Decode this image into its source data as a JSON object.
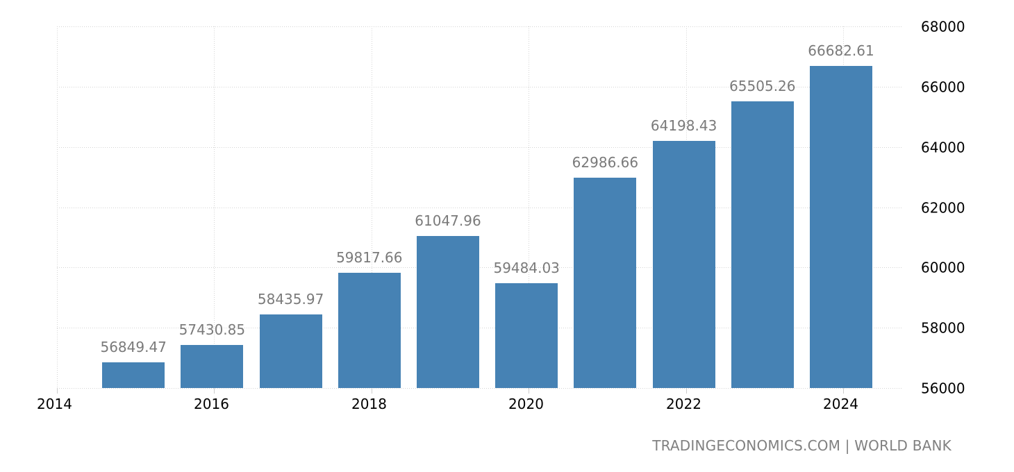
{
  "chart_data": {
    "type": "bar",
    "title": "",
    "xlabel": "",
    "ylabel": "",
    "categories": [
      "2015",
      "2016",
      "2017",
      "2018",
      "2019",
      "2020",
      "2021",
      "2022",
      "2023",
      "2024"
    ],
    "values": [
      56849.47,
      57430.85,
      58435.97,
      59817.66,
      61047.96,
      59484.03,
      62986.66,
      64198.43,
      65505.26,
      66682.61
    ],
    "data_labels": [
      "56849.47",
      "57430.85",
      "58435.97",
      "59817.66",
      "61047.96",
      "59484.03",
      "62986.66",
      "64198.43",
      "65505.26",
      "66682.61"
    ],
    "x_ticks": [
      "2014",
      "2016",
      "2018",
      "2020",
      "2022",
      "2024"
    ],
    "y_ticks": [
      "56000",
      "58000",
      "60000",
      "62000",
      "64000",
      "66000",
      "68000"
    ],
    "ylim": [
      56000,
      68000
    ],
    "xlim": [
      2014,
      2025
    ],
    "y_axis_position": "right",
    "grid": true,
    "legend": null,
    "bar_color": "#4682b4",
    "label_color": "#7a7a7a"
  },
  "footer": {
    "source": "TRADINGECONOMICS.COM | WORLD BANK"
  }
}
